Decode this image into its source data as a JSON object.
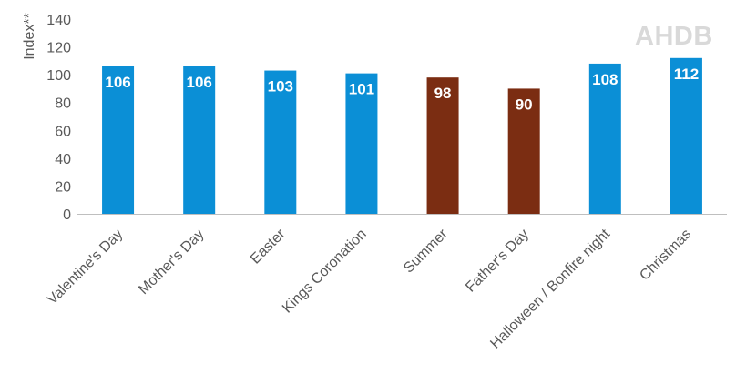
{
  "watermark_text": "AHDB",
  "chart_data": {
    "type": "bar",
    "title": "",
    "xlabel": "",
    "ylabel": "Index**",
    "ylim": [
      0,
      140
    ],
    "yticks": [
      0,
      20,
      40,
      60,
      80,
      100,
      120,
      140
    ],
    "grid": false,
    "legend": "none",
    "categories": [
      "Valentine's Day",
      "Mother's Day",
      "Easter",
      "Kings Coronation",
      "Summer",
      "Father's Day",
      "Halloween / Bonfire night",
      "Christmas"
    ],
    "values": [
      106,
      106,
      103,
      101,
      98,
      90,
      108,
      112
    ],
    "colors": [
      "#0b8fd6",
      "#0b8fd6",
      "#0b8fd6",
      "#0b8fd6",
      "#7b2d12",
      "#7b2d12",
      "#0b8fd6",
      "#0b8fd6"
    ],
    "data_labels": [
      "106",
      "106",
      "103",
      "101",
      "98",
      "90",
      "108",
      "112"
    ]
  }
}
